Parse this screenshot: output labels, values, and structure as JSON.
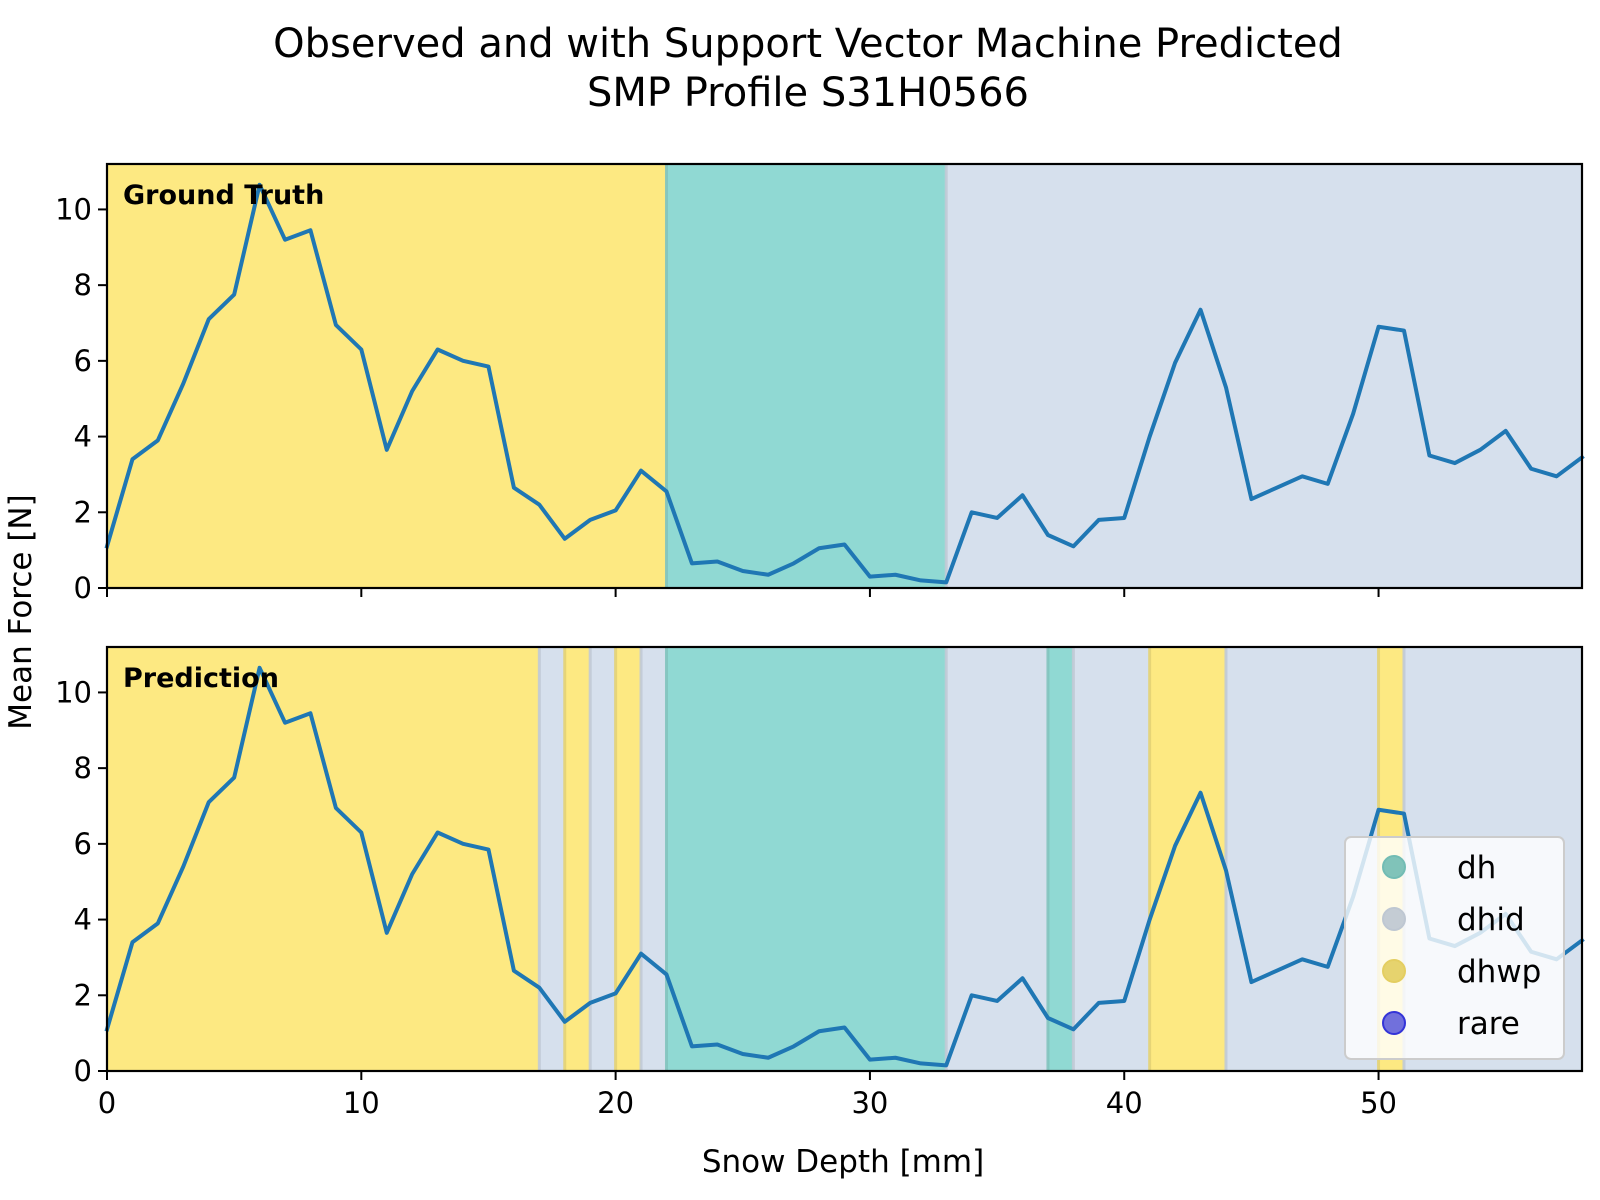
{
  "chart_data": {
    "type": "line",
    "title": [
      "Observed and with Support Vector Machine Predicted",
      "SMP Profile S31H0566"
    ],
    "xlabel": "Snow Depth [mm]",
    "ylabel": "Mean Force [N]",
    "xlim": [
      0,
      58
    ],
    "ylim": [
      0,
      11.2
    ],
    "x_ticks": [
      0,
      10,
      20,
      30,
      40,
      50
    ],
    "y_ticks": [
      0,
      2,
      4,
      6,
      8,
      10
    ],
    "grid": false,
    "x": [
      0,
      1,
      2,
      3,
      4,
      5,
      6,
      7,
      8,
      9,
      10,
      11,
      12,
      13,
      14,
      15,
      16,
      17,
      18,
      19,
      20,
      21,
      22,
      23,
      24,
      25,
      26,
      27,
      28,
      29,
      30,
      31,
      32,
      33,
      34,
      35,
      36,
      37,
      38,
      39,
      40,
      41,
      42,
      43,
      44,
      45,
      46,
      47,
      48,
      49,
      50,
      51,
      52,
      53,
      54,
      55,
      56,
      57,
      58
    ],
    "series": [
      {
        "color": "#1f77b4",
        "values": [
          1.1,
          3.4,
          3.9,
          5.4,
          7.1,
          7.75,
          10.65,
          9.2,
          9.45,
          6.95,
          6.3,
          3.65,
          5.2,
          6.3,
          6.0,
          5.85,
          2.65,
          2.2,
          1.3,
          1.8,
          2.05,
          3.1,
          2.55,
          0.65,
          0.7,
          0.45,
          0.35,
          0.65,
          1.05,
          1.15,
          0.3,
          0.35,
          0.2,
          0.15,
          2.0,
          1.85,
          2.45,
          1.4,
          1.1,
          1.8,
          1.85,
          4.0,
          5.95,
          7.35,
          5.3,
          2.35,
          2.65,
          2.95,
          2.75,
          4.6,
          6.9,
          6.8,
          3.5,
          3.3,
          3.65,
          4.15,
          3.15,
          2.95,
          3.45
        ]
      }
    ],
    "panels": [
      {
        "label": "Ground Truth",
        "segments": [
          {
            "start": 0,
            "end": 22,
            "class": "dhwp"
          },
          {
            "start": 22,
            "end": 33,
            "class": "dh"
          },
          {
            "start": 33,
            "end": 58,
            "class": "dhid"
          }
        ]
      },
      {
        "label": "Prediction",
        "segments": [
          {
            "start": 0,
            "end": 17,
            "class": "dhwp"
          },
          {
            "start": 17,
            "end": 18,
            "class": "dhid"
          },
          {
            "start": 18,
            "end": 19,
            "class": "dhwp"
          },
          {
            "start": 19,
            "end": 20,
            "class": "dhid"
          },
          {
            "start": 20,
            "end": 21,
            "class": "dhwp"
          },
          {
            "start": 21,
            "end": 22,
            "class": "dhid"
          },
          {
            "start": 22,
            "end": 33,
            "class": "dh"
          },
          {
            "start": 33,
            "end": 37,
            "class": "dhid"
          },
          {
            "start": 37,
            "end": 38,
            "class": "dh"
          },
          {
            "start": 38,
            "end": 41,
            "class": "dhid"
          },
          {
            "start": 41,
            "end": 44,
            "class": "dhwp"
          },
          {
            "start": 44,
            "end": 50,
            "class": "dhid"
          },
          {
            "start": 50,
            "end": 51,
            "class": "dhwp"
          },
          {
            "start": 51,
            "end": 58,
            "class": "dhid"
          }
        ]
      }
    ],
    "legend": {
      "placement": "lower-right",
      "entries": [
        {
          "label": "dh",
          "color": "#7fd1c8"
        },
        {
          "label": "dhid",
          "color": "#d3dde9"
        },
        {
          "label": "dhwp",
          "color": "#fde56c"
        },
        {
          "label": "rare",
          "color": "#3a3af0"
        }
      ]
    },
    "class_colors": {
      "dh": "#90d9d3",
      "dhid": "#d6e0ed",
      "dhwp": "#fde982",
      "rare": "#3a3af0"
    }
  }
}
